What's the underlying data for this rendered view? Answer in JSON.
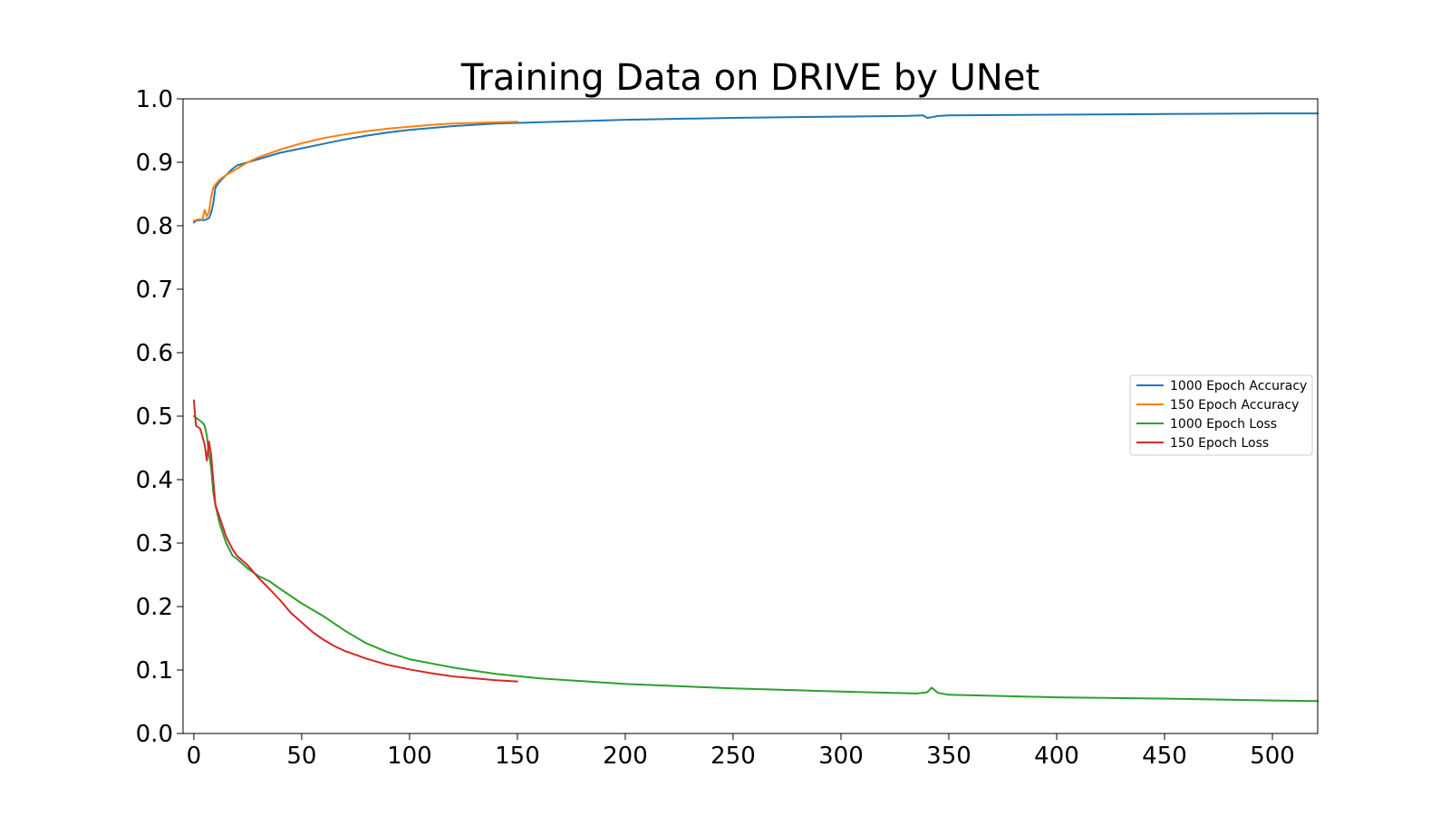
{
  "chart_data": {
    "type": "line",
    "title": "Training Data on DRIVE by UNet",
    "xlabel": "",
    "ylabel": "",
    "xlim": [
      -5,
      521
    ],
    "ylim": [
      0.0,
      1.0
    ],
    "x_ticks": [
      0,
      50,
      100,
      150,
      200,
      250,
      300,
      350,
      400,
      450,
      500
    ],
    "y_ticks": [
      0.0,
      0.1,
      0.2,
      0.3,
      0.4,
      0.5,
      0.6,
      0.7,
      0.8,
      0.9,
      1.0
    ],
    "x_tick_labels": [
      "0",
      "50",
      "100",
      "150",
      "200",
      "250",
      "300",
      "350",
      "400",
      "450",
      "500"
    ],
    "y_tick_labels": [
      "0.0",
      "0.1",
      "0.2",
      "0.3",
      "0.4",
      "0.5",
      "0.6",
      "0.7",
      "0.8",
      "0.9",
      "1.0"
    ],
    "grid": false,
    "legend_position": "center-right",
    "series": [
      {
        "name": "1000 Epoch Accuracy",
        "color": "#1f77b4",
        "x": [
          0,
          1,
          3,
          5,
          7,
          8,
          9,
          10,
          12,
          15,
          18,
          20,
          25,
          30,
          40,
          50,
          60,
          70,
          80,
          90,
          100,
          120,
          140,
          160,
          180,
          200,
          250,
          300,
          330,
          338,
          340,
          342,
          345,
          350,
          400,
          450,
          500,
          521
        ],
        "y": [
          0.805,
          0.808,
          0.809,
          0.809,
          0.812,
          0.82,
          0.835,
          0.86,
          0.87,
          0.88,
          0.89,
          0.895,
          0.9,
          0.905,
          0.915,
          0.922,
          0.929,
          0.936,
          0.942,
          0.947,
          0.951,
          0.957,
          0.961,
          0.963,
          0.965,
          0.967,
          0.97,
          0.972,
          0.973,
          0.974,
          0.97,
          0.971,
          0.973,
          0.974,
          0.975,
          0.976,
          0.977,
          0.977
        ]
      },
      {
        "name": "150 Epoch Accuracy",
        "color": "#ff7f0e",
        "x": [
          0,
          2,
          4,
          5,
          6,
          7,
          8,
          9,
          10,
          12,
          15,
          20,
          25,
          30,
          40,
          50,
          60,
          70,
          80,
          90,
          100,
          110,
          120,
          130,
          140,
          150
        ],
        "y": [
          0.808,
          0.81,
          0.81,
          0.825,
          0.815,
          0.822,
          0.845,
          0.86,
          0.865,
          0.873,
          0.88,
          0.89,
          0.9,
          0.908,
          0.92,
          0.93,
          0.938,
          0.944,
          0.949,
          0.953,
          0.956,
          0.959,
          0.961,
          0.962,
          0.963,
          0.964
        ]
      },
      {
        "name": "1000 Epoch Loss",
        "color": "#2ca02c",
        "x": [
          0,
          2,
          4,
          5,
          6,
          7,
          8,
          9,
          10,
          12,
          15,
          18,
          20,
          25,
          30,
          35,
          40,
          50,
          60,
          70,
          80,
          90,
          100,
          120,
          140,
          160,
          200,
          250,
          300,
          335,
          340,
          342,
          345,
          350,
          400,
          450,
          500,
          521
        ],
        "y": [
          0.5,
          0.495,
          0.49,
          0.485,
          0.47,
          0.44,
          0.42,
          0.38,
          0.36,
          0.33,
          0.3,
          0.28,
          0.275,
          0.26,
          0.248,
          0.24,
          0.228,
          0.205,
          0.185,
          0.162,
          0.142,
          0.128,
          0.117,
          0.104,
          0.094,
          0.087,
          0.078,
          0.071,
          0.066,
          0.063,
          0.065,
          0.072,
          0.064,
          0.061,
          0.057,
          0.055,
          0.052,
          0.051
        ]
      },
      {
        "name": "150 Epoch Loss",
        "color": "#d62728",
        "x": [
          0,
          1,
          3,
          5,
          6,
          7,
          8,
          9,
          10,
          12,
          15,
          18,
          20,
          25,
          30,
          35,
          40,
          45,
          50,
          55,
          60,
          65,
          70,
          75,
          80,
          85,
          90,
          100,
          110,
          120,
          130,
          140,
          150
        ],
        "y": [
          0.525,
          0.485,
          0.48,
          0.455,
          0.43,
          0.46,
          0.44,
          0.4,
          0.36,
          0.34,
          0.31,
          0.29,
          0.28,
          0.265,
          0.245,
          0.228,
          0.21,
          0.19,
          0.175,
          0.16,
          0.148,
          0.138,
          0.13,
          0.124,
          0.118,
          0.113,
          0.108,
          0.101,
          0.095,
          0.09,
          0.087,
          0.084,
          0.082
        ]
      }
    ]
  }
}
